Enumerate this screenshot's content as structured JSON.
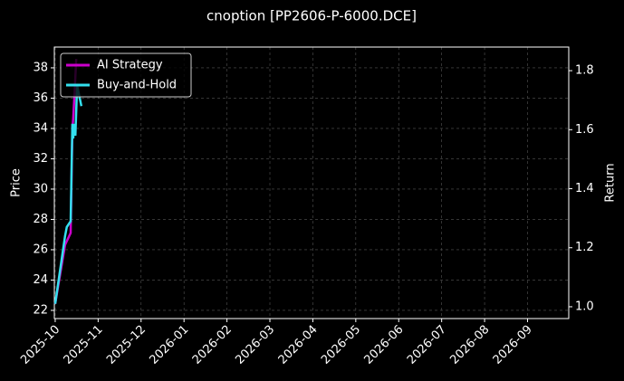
{
  "chart_data": {
    "type": "line",
    "title": "cnoption [PP2606-P-6000.DCE]",
    "ylabel": "Price",
    "y2label": "Return",
    "xlim": [
      -0.02,
      11.96
    ],
    "xticks": [
      {
        "value": 0,
        "label": "2025-10"
      },
      {
        "value": 1,
        "label": "2025-11"
      },
      {
        "value": 2,
        "label": "2025-12"
      },
      {
        "value": 3,
        "label": "2026-01"
      },
      {
        "value": 4,
        "label": "2026-02"
      },
      {
        "value": 5,
        "label": "2026-03"
      },
      {
        "value": 6,
        "label": "2026-04"
      },
      {
        "value": 7,
        "label": "2026-05"
      },
      {
        "value": 8,
        "label": "2026-06"
      },
      {
        "value": 9,
        "label": "2026-07"
      },
      {
        "value": 10,
        "label": "2026-08"
      },
      {
        "value": 11,
        "label": "2026-09"
      }
    ],
    "ylim": [
      21.46,
      39.37
    ],
    "yticks": [
      22,
      24,
      26,
      28,
      30,
      32,
      34,
      36,
      38
    ],
    "y2lim": [
      0.96,
      1.88
    ],
    "y2ticks": [
      {
        "value": 1.0,
        "label": "1.0"
      },
      1.2,
      1.4,
      1.6,
      1.8
    ],
    "grid": true,
    "legend": "upper-left",
    "series": [
      {
        "name": "AI Strategy",
        "color": "#cc00cc",
        "axis": "y2",
        "x": [
          0,
          0.23,
          0.36,
          0.4,
          0.42,
          0.45,
          0.49
        ],
        "values": [
          1.01,
          1.21,
          1.25,
          1.6,
          1.64,
          1.72,
          1.84
        ]
      },
      {
        "name": "Buy-and-Hold",
        "color": "#33e0ee",
        "axis": "y2",
        "x": [
          0,
          0.23,
          0.27,
          0.36,
          0.4,
          0.42,
          0.44,
          0.47,
          0.51,
          0.61
        ],
        "values": [
          1.01,
          1.24,
          1.27,
          1.29,
          1.62,
          1.57,
          1.62,
          1.58,
          1.75,
          1.68
        ]
      }
    ]
  }
}
